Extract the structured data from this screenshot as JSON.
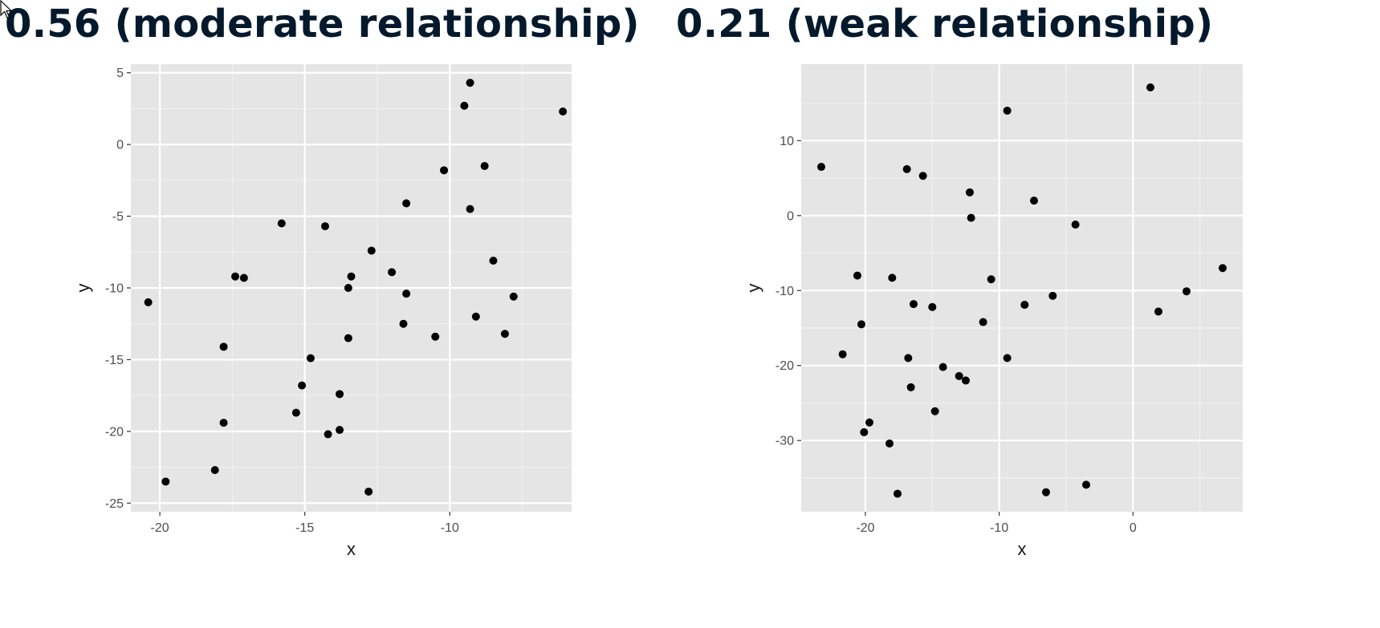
{
  "chart_data": [
    {
      "type": "scatter",
      "title": "0.56 (moderate relationship)",
      "xlabel": "x",
      "ylabel": "y",
      "xlim": [
        -21,
        -5.8
      ],
      "ylim": [
        -25.6,
        5.6
      ],
      "xticks": [
        -20,
        -15,
        -10
      ],
      "yticks": [
        5,
        0,
        -5,
        -10,
        -15,
        -20,
        -25
      ],
      "grid": true,
      "background": "#e5e5e5",
      "point_color": "#000000",
      "points": [
        {
          "x": -9.3,
          "y": 4.3
        },
        {
          "x": -9.5,
          "y": 2.7
        },
        {
          "x": -6.1,
          "y": 2.3
        },
        {
          "x": -10.2,
          "y": -1.8
        },
        {
          "x": -8.8,
          "y": -1.5
        },
        {
          "x": -11.5,
          "y": -4.1
        },
        {
          "x": -9.3,
          "y": -4.5
        },
        {
          "x": -15.8,
          "y": -5.5
        },
        {
          "x": -14.3,
          "y": -5.7
        },
        {
          "x": -12.7,
          "y": -7.4
        },
        {
          "x": -8.5,
          "y": -8.1
        },
        {
          "x": -12.0,
          "y": -8.9
        },
        {
          "x": -17.4,
          "y": -9.2
        },
        {
          "x": -17.1,
          "y": -9.3
        },
        {
          "x": -13.4,
          "y": -9.2
        },
        {
          "x": -13.5,
          "y": -10.0
        },
        {
          "x": -11.5,
          "y": -10.4
        },
        {
          "x": -7.8,
          "y": -10.6
        },
        {
          "x": -20.4,
          "y": -11.0
        },
        {
          "x": -9.1,
          "y": -12.0
        },
        {
          "x": -11.6,
          "y": -12.5
        },
        {
          "x": -10.5,
          "y": -13.4
        },
        {
          "x": -8.1,
          "y": -13.2
        },
        {
          "x": -13.5,
          "y": -13.5
        },
        {
          "x": -17.8,
          "y": -14.1
        },
        {
          "x": -14.8,
          "y": -14.9
        },
        {
          "x": -15.1,
          "y": -16.8
        },
        {
          "x": -13.8,
          "y": -17.4
        },
        {
          "x": -15.3,
          "y": -18.7
        },
        {
          "x": -17.8,
          "y": -19.4
        },
        {
          "x": -13.8,
          "y": -19.9
        },
        {
          "x": -14.2,
          "y": -20.2
        },
        {
          "x": -18.1,
          "y": -22.7
        },
        {
          "x": -19.8,
          "y": -23.5
        },
        {
          "x": -12.8,
          "y": -24.2
        }
      ]
    },
    {
      "type": "scatter",
      "title": "0.21 (weak relationship)",
      "xlabel": "x",
      "ylabel": "y",
      "xlim": [
        -24.8,
        8.2
      ],
      "ylim": [
        -39.5,
        20.2
      ],
      "xticks": [
        -20,
        -10,
        0
      ],
      "yticks": [
        10,
        0,
        -10,
        -20,
        -30
      ],
      "grid": true,
      "background": "#e5e5e5",
      "point_color": "#000000",
      "points": [
        {
          "x": 1.3,
          "y": 17.1
        },
        {
          "x": -9.4,
          "y": 14.0
        },
        {
          "x": -23.3,
          "y": 6.5
        },
        {
          "x": -16.9,
          "y": 6.2
        },
        {
          "x": -15.7,
          "y": 5.3
        },
        {
          "x": -12.2,
          "y": 3.1
        },
        {
          "x": -7.4,
          "y": 2.0
        },
        {
          "x": -12.1,
          "y": -0.3
        },
        {
          "x": -4.3,
          "y": -1.2
        },
        {
          "x": 6.7,
          "y": -7.0
        },
        {
          "x": -20.6,
          "y": -8.0
        },
        {
          "x": -18.0,
          "y": -8.3
        },
        {
          "x": -10.6,
          "y": -8.5
        },
        {
          "x": 4.0,
          "y": -10.1
        },
        {
          "x": -6.0,
          "y": -10.7
        },
        {
          "x": -16.4,
          "y": -11.8
        },
        {
          "x": -8.1,
          "y": -11.9
        },
        {
          "x": -15.0,
          "y": -12.2
        },
        {
          "x": 1.9,
          "y": -12.8
        },
        {
          "x": -11.2,
          "y": -14.2
        },
        {
          "x": -20.3,
          "y": -14.5
        },
        {
          "x": -21.7,
          "y": -18.5
        },
        {
          "x": -16.8,
          "y": -19.0
        },
        {
          "x": -9.4,
          "y": -19.0
        },
        {
          "x": -14.2,
          "y": -20.2
        },
        {
          "x": -13.0,
          "y": -21.4
        },
        {
          "x": -12.5,
          "y": -22.0
        },
        {
          "x": -16.6,
          "y": -22.9
        },
        {
          "x": -14.8,
          "y": -26.1
        },
        {
          "x": -19.7,
          "y": -27.6
        },
        {
          "x": -20.1,
          "y": -28.9
        },
        {
          "x": -18.2,
          "y": -30.4
        },
        {
          "x": -3.5,
          "y": -35.9
        },
        {
          "x": -6.5,
          "y": -36.9
        },
        {
          "x": -17.6,
          "y": -37.1
        }
      ]
    }
  ]
}
